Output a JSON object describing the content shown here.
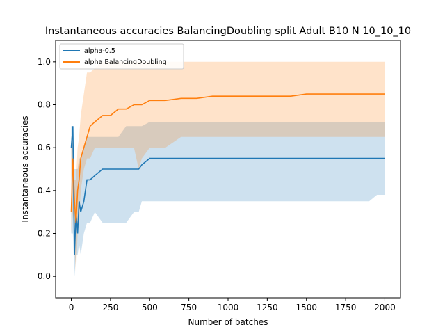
{
  "chart_data": {
    "type": "line",
    "title": "Instantaneous accuracies BalancingDoubling split Adult B10 N 10_10_10",
    "xlabel": "Number of batches",
    "ylabel": "Instantaneous accuracies",
    "xlim": [
      -100,
      2100
    ],
    "ylim": [
      -0.1,
      1.1
    ],
    "xticks": [
      0,
      250,
      500,
      750,
      1000,
      1250,
      1500,
      1750,
      2000
    ],
    "yticks": [
      0.0,
      0.2,
      0.4,
      0.6,
      0.8,
      1.0
    ],
    "xtick_labels": [
      "0",
      "250",
      "500",
      "750",
      "1000",
      "1250",
      "1500",
      "1750",
      "2000"
    ],
    "ytick_labels": [
      "0.0",
      "0.2",
      "0.4",
      "0.6",
      "0.8",
      "1.0"
    ],
    "legend_position": "upper-left",
    "grid": false,
    "series": [
      {
        "name": "alpha-0.5",
        "color": "#1f77b4",
        "band_color": "#1f77b4",
        "x": [
          0,
          10,
          20,
          30,
          40,
          50,
          60,
          80,
          100,
          120,
          150,
          200,
          250,
          300,
          350,
          400,
          430,
          450,
          500,
          600,
          700,
          800,
          900,
          1000,
          1100,
          1200,
          1300,
          1400,
          1500,
          1600,
          1700,
          1800,
          1900,
          1950,
          2000
        ],
        "mean": [
          0.6,
          0.7,
          0.1,
          0.3,
          0.2,
          0.35,
          0.3,
          0.35,
          0.45,
          0.45,
          0.47,
          0.5,
          0.5,
          0.5,
          0.5,
          0.5,
          0.5,
          0.52,
          0.55,
          0.55,
          0.55,
          0.55,
          0.55,
          0.55,
          0.55,
          0.55,
          0.55,
          0.55,
          0.55,
          0.55,
          0.55,
          0.55,
          0.55,
          0.55,
          0.55
        ],
        "lower": [
          0.2,
          0.2,
          0.0,
          0.1,
          0.1,
          0.15,
          0.1,
          0.2,
          0.25,
          0.25,
          0.3,
          0.25,
          0.25,
          0.25,
          0.25,
          0.3,
          0.3,
          0.35,
          0.35,
          0.35,
          0.35,
          0.35,
          0.35,
          0.35,
          0.35,
          0.35,
          0.35,
          0.35,
          0.35,
          0.35,
          0.35,
          0.35,
          0.35,
          0.38,
          0.38
        ],
        "upper": [
          0.7,
          0.7,
          0.5,
          0.5,
          0.5,
          0.55,
          0.55,
          0.6,
          0.65,
          0.65,
          0.65,
          0.65,
          0.65,
          0.65,
          0.7,
          0.7,
          0.7,
          0.7,
          0.72,
          0.72,
          0.72,
          0.72,
          0.72,
          0.72,
          0.72,
          0.72,
          0.72,
          0.72,
          0.72,
          0.72,
          0.72,
          0.72,
          0.72,
          0.72,
          0.72
        ]
      },
      {
        "name": "alpha BalancingDoubling",
        "color": "#ff7f0e",
        "band_color": "#ff7f0e",
        "x": [
          0,
          10,
          20,
          30,
          40,
          50,
          60,
          80,
          100,
          120,
          150,
          200,
          250,
          300,
          350,
          400,
          430,
          450,
          500,
          600,
          700,
          800,
          900,
          1000,
          1100,
          1200,
          1300,
          1400,
          1500,
          1600,
          1700,
          1800,
          1900,
          1950,
          2000
        ],
        "mean": [
          0.3,
          0.55,
          0.35,
          0.25,
          0.4,
          0.45,
          0.55,
          0.6,
          0.65,
          0.7,
          0.72,
          0.75,
          0.75,
          0.78,
          0.78,
          0.8,
          0.8,
          0.8,
          0.82,
          0.82,
          0.83,
          0.83,
          0.84,
          0.84,
          0.84,
          0.84,
          0.84,
          0.84,
          0.85,
          0.85,
          0.85,
          0.85,
          0.85,
          0.85,
          0.85
        ],
        "lower": [
          0.2,
          0.3,
          0.15,
          0.0,
          0.2,
          0.25,
          0.4,
          0.5,
          0.55,
          0.55,
          0.6,
          0.6,
          0.6,
          0.6,
          0.6,
          0.6,
          0.5,
          0.55,
          0.6,
          0.6,
          0.65,
          0.65,
          0.65,
          0.65,
          0.65,
          0.65,
          0.65,
          0.65,
          0.65,
          0.65,
          0.65,
          0.65,
          0.65,
          0.65,
          0.65
        ],
        "upper": [
          0.65,
          0.65,
          0.45,
          0.45,
          0.6,
          0.65,
          0.75,
          0.85,
          0.95,
          0.95,
          0.97,
          1.0,
          1.0,
          1.0,
          1.0,
          1.0,
          1.0,
          1.0,
          1.0,
          1.0,
          1.0,
          1.0,
          1.0,
          1.0,
          1.0,
          1.0,
          1.0,
          1.0,
          1.0,
          1.0,
          1.0,
          1.0,
          1.0,
          1.0,
          1.0
        ]
      }
    ]
  }
}
